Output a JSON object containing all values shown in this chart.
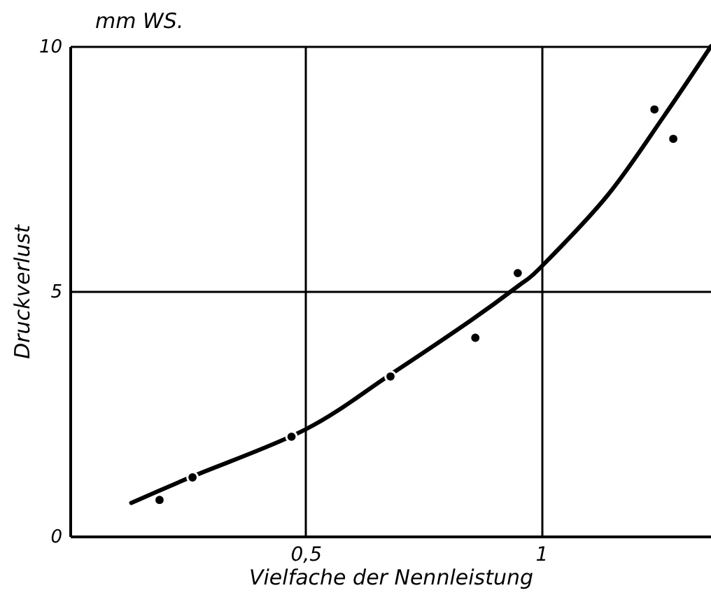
{
  "chart_data": {
    "type": "scatter",
    "xlabel": "Vielfache der Nennleistung",
    "ylabel": "Druckverlust",
    "annotations": [
      "mm WS."
    ],
    "xlim": [
      0,
      1.36
    ],
    "xticks": [
      {
        "value": 0,
        "label": null
      },
      {
        "value": 0.5,
        "label": "0,5"
      },
      1
    ],
    "ylim": [
      0,
      10
    ],
    "yticks": [
      0,
      5,
      10
    ],
    "grid": true,
    "series": [
      {
        "color": "#000000",
        "marker": "circle",
        "x": [
          0.19,
          0.26,
          0.47,
          0.68,
          0.86,
          0.95,
          1.24,
          1.28
        ],
        "values": [
          0.74,
          1.2,
          2.03,
          3.26,
          4.05,
          5.37,
          8.71,
          8.11
        ]
      },
      {
        "type": "line",
        "color": "#000000",
        "line_style": "solid",
        "x": [
          0.13,
          0.26,
          0.5,
          0.68,
          0.85,
          0.95,
          1.0,
          1.14,
          1.26,
          1.36
        ],
        "values": [
          0.68,
          1.22,
          2.18,
          3.3,
          4.4,
          5.1,
          5.5,
          6.95,
          8.57,
          10
        ]
      }
    ]
  }
}
